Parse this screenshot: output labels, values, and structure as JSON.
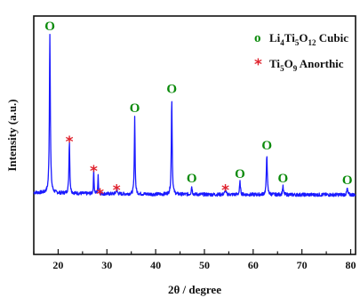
{
  "chart_data": {
    "type": "line",
    "xlabel": "2θ / degree",
    "ylabel": "Intensity (a.u.)",
    "xlim": [
      15,
      81
    ],
    "x_ticks": [
      20,
      30,
      40,
      50,
      60,
      70,
      80
    ],
    "grid": false,
    "legend_position": "top-right",
    "line_color": "#1a1aff",
    "legend": [
      {
        "symbol": "o",
        "color": "#0a8a0a",
        "label_parts": [
          "Li",
          "4",
          "Ti",
          "5",
          "O",
          "12",
          " Cubic"
        ]
      },
      {
        "symbol": "*",
        "color": "#e0222c",
        "label_parts": [
          "Ti",
          "5",
          "O",
          "9",
          " Anorthic"
        ]
      }
    ],
    "series": [
      {
        "baseline": 1.5,
        "peaks": [
          {
            "x": 18.3,
            "height": 25.5,
            "width": 0.22,
            "phase": "o"
          },
          {
            "x": 22.3,
            "height": 8.5,
            "width": 0.2,
            "phase": "*"
          },
          {
            "x": 27.3,
            "height": 3.8,
            "width": 0.15,
            "phase": "*"
          },
          {
            "x": 28.2,
            "height": 2.8,
            "width": 0.15,
            "phase": "*"
          },
          {
            "x": 32.0,
            "height": 0.8,
            "width": 0.25,
            "phase": "*"
          },
          {
            "x": 35.7,
            "height": 12.5,
            "width": 0.18,
            "phase": "o"
          },
          {
            "x": 43.3,
            "height": 15.5,
            "width": 0.2,
            "phase": "o"
          },
          {
            "x": 47.4,
            "height": 1.3,
            "width": 0.22,
            "phase": "o"
          },
          {
            "x": 54.3,
            "height": 0.8,
            "width": 0.25,
            "phase": "*"
          },
          {
            "x": 57.3,
            "height": 2.0,
            "width": 0.22,
            "phase": "o"
          },
          {
            "x": 62.8,
            "height": 6.5,
            "width": 0.22,
            "phase": "o"
          },
          {
            "x": 66.1,
            "height": 1.3,
            "width": 0.22,
            "phase": "o"
          },
          {
            "x": 79.3,
            "height": 1.0,
            "width": 0.22,
            "phase": "o"
          }
        ]
      }
    ],
    "markers": [
      {
        "phase": "o",
        "x": 18.3
      },
      {
        "phase": "*",
        "x": 22.3
      },
      {
        "phase": "*",
        "x": 27.3
      },
      {
        "phase": "*",
        "x": 28.6
      },
      {
        "phase": "*",
        "x": 32.0
      },
      {
        "phase": "o",
        "x": 35.7
      },
      {
        "phase": "o",
        "x": 43.3
      },
      {
        "phase": "o",
        "x": 47.4
      },
      {
        "phase": "*",
        "x": 54.3
      },
      {
        "phase": "o",
        "x": 57.3
      },
      {
        "phase": "o",
        "x": 62.8
      },
      {
        "phase": "o",
        "x": 66.1
      },
      {
        "phase": "o",
        "x": 79.3
      }
    ]
  }
}
